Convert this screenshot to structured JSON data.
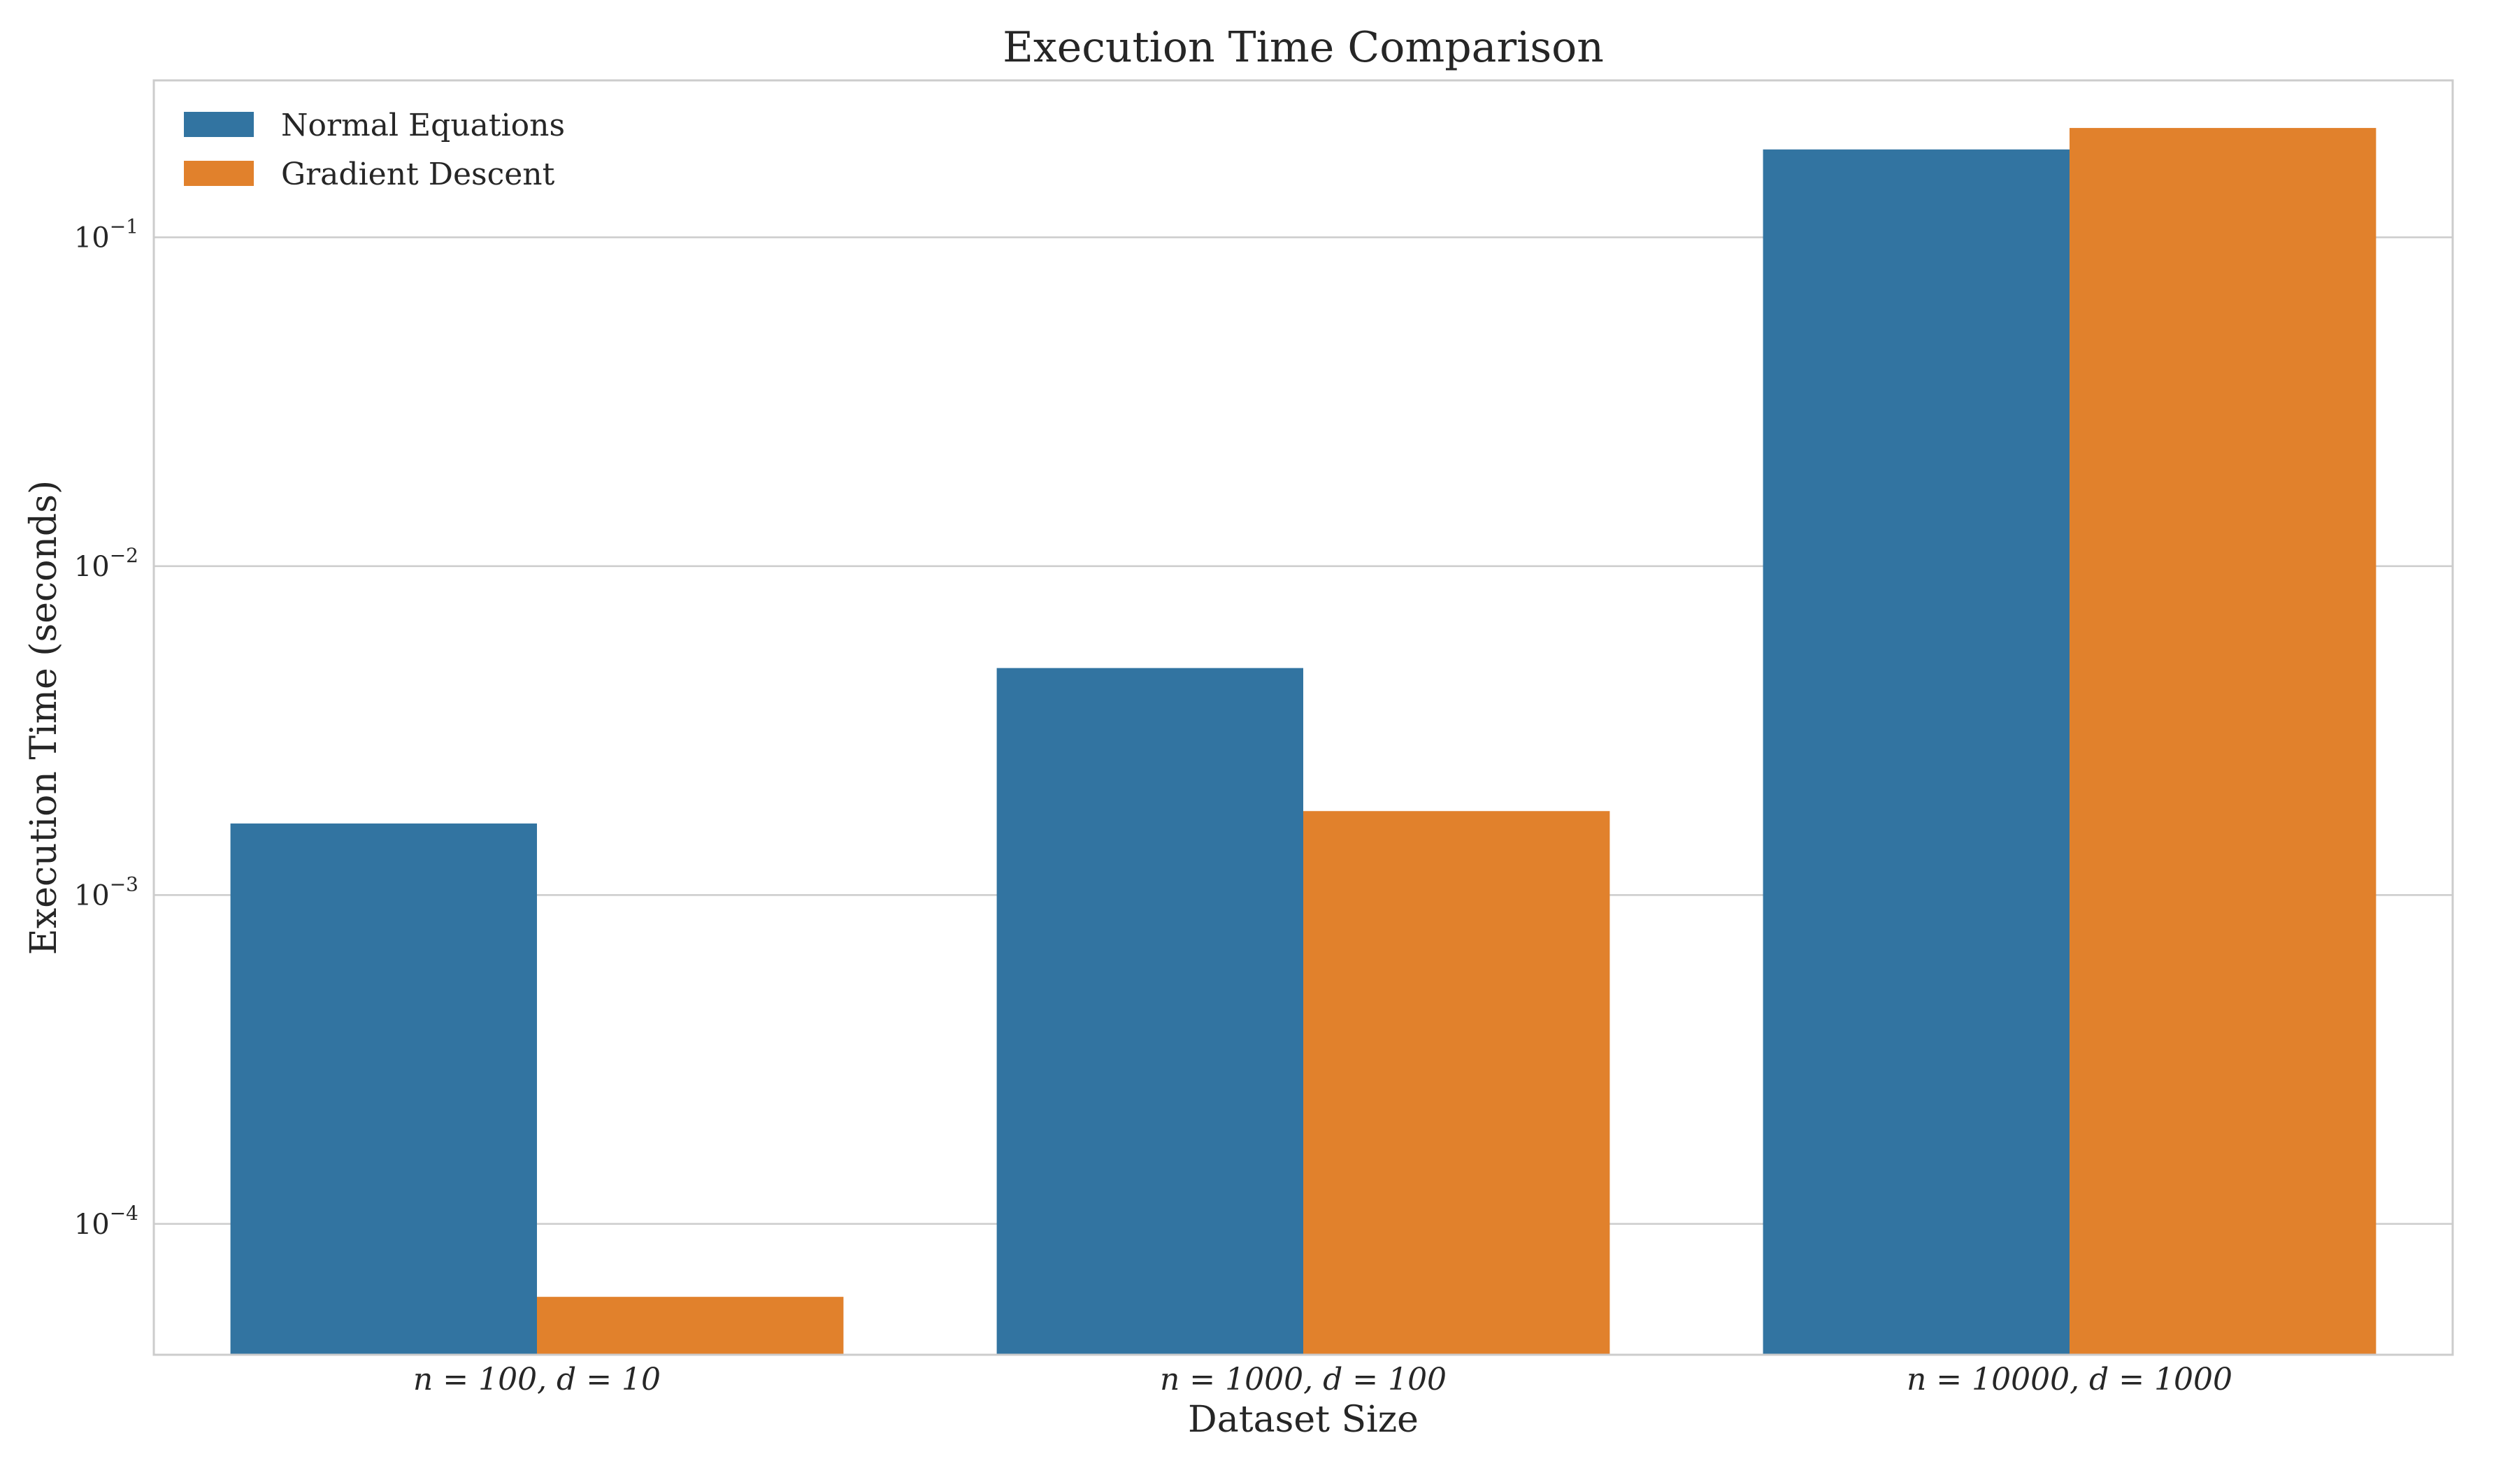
{
  "chart_data": {
    "type": "bar",
    "title": "Execution Time Comparison",
    "xlabel": "Dataset Size",
    "ylabel": "Execution Time (seconds)",
    "yscale": "log",
    "ylim": [
      4e-05,
      0.3
    ],
    "yticks": [
      {
        "value": 0.0001,
        "base": "10",
        "exp": "−4"
      },
      {
        "value": 0.001,
        "base": "10",
        "exp": "−3"
      },
      {
        "value": 0.01,
        "base": "10",
        "exp": "−2"
      },
      {
        "value": 0.1,
        "base": "10",
        "exp": "−1"
      }
    ],
    "categories": [
      "n = 100, d = 10",
      "n = 1000, d = 100",
      "n = 10000, d = 1000"
    ],
    "series": [
      {
        "name": "Normal Equations",
        "color": "#3274a1",
        "values": [
          0.00165,
          0.0049,
          0.185
        ]
      },
      {
        "name": "Gradient Descent",
        "color": "#e1812c",
        "values": [
          6e-05,
          0.0018,
          0.215
        ]
      }
    ],
    "grid": "horizontal",
    "legend_position": "top-left"
  }
}
